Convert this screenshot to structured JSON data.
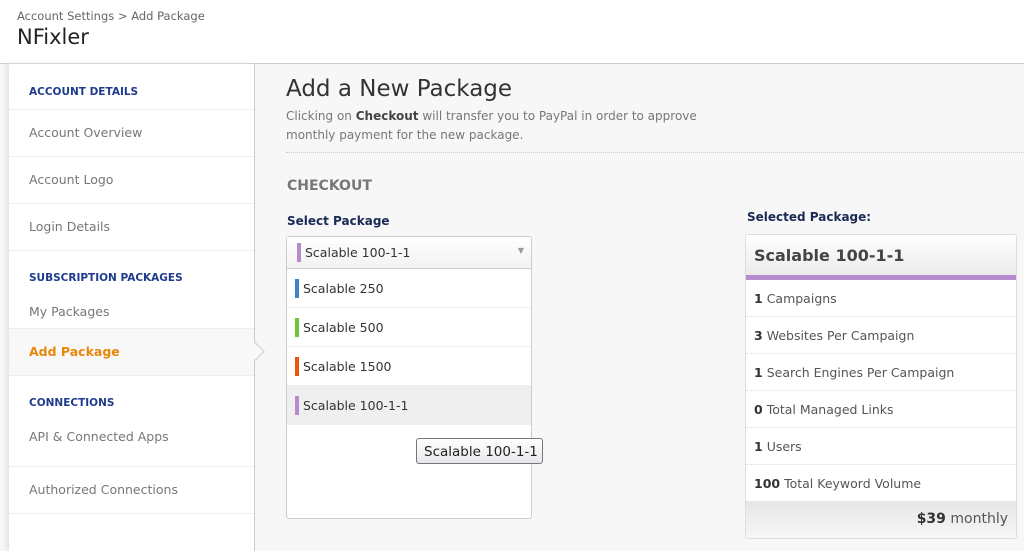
{
  "header": {
    "breadcrumb": "Account Settings > Add Package",
    "title": "NFixler"
  },
  "sidebar": {
    "sections": [
      {
        "title": "ACCOUNT DETAILS",
        "items": [
          "Account Overview",
          "Account Logo",
          "Login Details"
        ]
      },
      {
        "title": "SUBSCRIPTION PACKAGES",
        "items": [
          "My Packages",
          "Add Package"
        ]
      },
      {
        "title": "CONNECTIONS",
        "items": [
          "API & Connected Apps",
          "Authorized Connections"
        ]
      }
    ],
    "active": "Add Package"
  },
  "main": {
    "heading": "Add a New Package",
    "desc_pre": "Clicking on ",
    "desc_bold": "Checkout",
    "desc_post": " will transfer you to PayPal in order to approve monthly payment for the new package.",
    "checkout": "CHECKOUT",
    "select_label": "Select Package",
    "selected": {
      "label": "Scalable 100-1-1",
      "color": "#b88ad0"
    },
    "options": [
      {
        "label": "Scalable 250",
        "color": "#3d85c6"
      },
      {
        "label": "Scalable 500",
        "color": "#6cc531"
      },
      {
        "label": "Scalable 1500",
        "color": "#e8560f"
      },
      {
        "label": "Scalable 100-1-1",
        "color": "#b88ad0"
      }
    ],
    "tooltip": "Scalable 100-1-1"
  },
  "package": {
    "label": "Selected Package:",
    "name": "Scalable 100-1-1",
    "features": [
      {
        "n": "1",
        "t": "Campaigns"
      },
      {
        "n": "3",
        "t": "Websites Per Campaign"
      },
      {
        "n": "1",
        "t": "Search Engines Per Campaign"
      },
      {
        "n": "0",
        "t": "Total Managed Links"
      },
      {
        "n": "1",
        "t": "Users"
      },
      {
        "n": "100",
        "t": "Total Keyword Volume"
      }
    ],
    "price": "$39",
    "period": "monthly"
  }
}
